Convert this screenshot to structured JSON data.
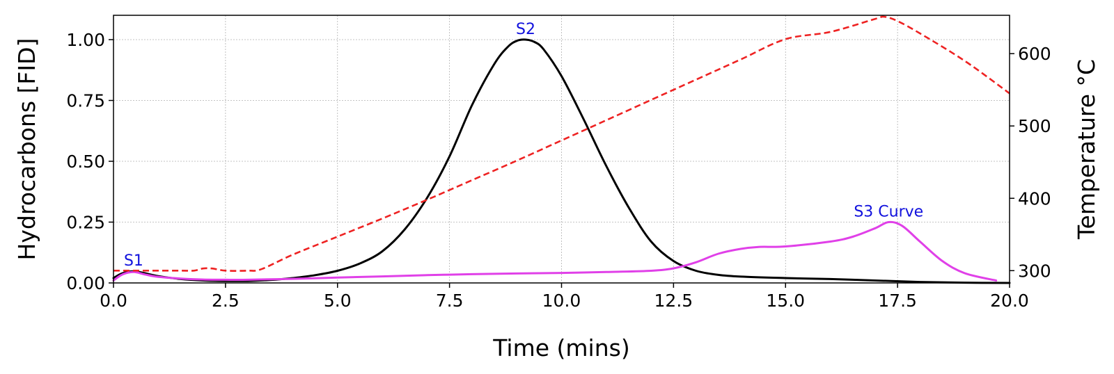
{
  "chart_data": {
    "type": "line",
    "xlabel": "Time (mins)",
    "ylabel_left": "Hydrocarbons [FID]",
    "ylabel_right": "Temperature °C",
    "xlim": [
      0,
      20
    ],
    "ylim_left": [
      0,
      1.1
    ],
    "ylim_right": [
      283,
      653
    ],
    "x_ticks": [
      "0.0",
      "2.5",
      "5.0",
      "7.5",
      "10.0",
      "12.5",
      "15.0",
      "17.5",
      "20.0"
    ],
    "y_left_ticks": [
      "0.00",
      "0.25",
      "0.50",
      "0.75",
      "1.00"
    ],
    "y_right_ticks": [
      "300",
      "400",
      "500",
      "600"
    ],
    "grid": true,
    "series": [
      {
        "axis": "left",
        "color": "#000000",
        "style": "solid",
        "x": [
          0,
          0.2,
          0.45,
          0.7,
          1.0,
          1.5,
          2.0,
          2.5,
          3.0,
          3.5,
          4.0,
          4.5,
          5.0,
          5.5,
          6.0,
          6.5,
          7.0,
          7.5,
          8.0,
          8.5,
          8.8,
          9.0,
          9.2,
          9.4,
          9.6,
          10.0,
          10.5,
          11.0,
          11.5,
          12.0,
          12.5,
          13.0,
          13.5,
          14.0,
          15.0,
          16.0,
          17.0,
          18.0,
          19.0,
          20.0
        ],
        "y": [
          0.02,
          0.04,
          0.048,
          0.04,
          0.028,
          0.016,
          0.01,
          0.008,
          0.008,
          0.012,
          0.02,
          0.032,
          0.05,
          0.08,
          0.13,
          0.22,
          0.35,
          0.52,
          0.73,
          0.9,
          0.97,
          0.995,
          1.0,
          0.99,
          0.96,
          0.85,
          0.67,
          0.48,
          0.31,
          0.17,
          0.09,
          0.05,
          0.033,
          0.026,
          0.02,
          0.016,
          0.01,
          0.004,
          0.001,
          0.0
        ]
      },
      {
        "axis": "left",
        "color": "#e040e8",
        "style": "solid",
        "x": [
          0,
          0.2,
          0.45,
          0.7,
          1.0,
          1.5,
          2.0,
          2.5,
          3.0,
          4.0,
          5.0,
          6.0,
          7.0,
          8.0,
          9.0,
          10.0,
          11.0,
          12.0,
          12.5,
          13.0,
          13.5,
          14.0,
          14.4,
          15.0,
          16.0,
          16.5,
          17.0,
          17.3,
          17.6,
          18.0,
          18.5,
          19.0,
          19.7
        ],
        "y": [
          0.01,
          0.035,
          0.045,
          0.035,
          0.025,
          0.018,
          0.014,
          0.013,
          0.013,
          0.017,
          0.022,
          0.027,
          0.032,
          0.036,
          0.039,
          0.041,
          0.045,
          0.05,
          0.06,
          0.085,
          0.12,
          0.14,
          0.148,
          0.15,
          0.17,
          0.19,
          0.225,
          0.25,
          0.235,
          0.17,
          0.09,
          0.04,
          0.01
        ]
      },
      {
        "axis": "right",
        "color": "#ee2222",
        "style": "dashed",
        "x": [
          0,
          0.5,
          1.0,
          1.5,
          1.8,
          2.0,
          2.2,
          2.5,
          3.0,
          3.3,
          4.0,
          5.0,
          6.0,
          7.0,
          8.0,
          9.0,
          10.0,
          11.0,
          12.0,
          13.0,
          14.0,
          15.0,
          16.0,
          17.0,
          17.2,
          17.5,
          18.0,
          19.0,
          20.0
        ],
        "y": [
          300,
          300,
          300,
          300,
          300,
          303,
          303,
          300,
          300,
          302,
          322,
          347,
          372,
          398,
          425,
          452,
          480,
          508,
          536,
          564,
          592,
          620,
          630,
          648,
          651,
          645,
          628,
          590,
          545
        ]
      }
    ],
    "annotations": [
      {
        "text": "S1",
        "x": 0.45,
        "y": 0.048,
        "color": "#1111dd"
      },
      {
        "text": "S2",
        "x": 9.2,
        "y": 1.0,
        "color": "#1111dd"
      },
      {
        "text": "S3 Curve",
        "x": 17.3,
        "y": 0.25,
        "color": "#1111dd"
      }
    ]
  }
}
